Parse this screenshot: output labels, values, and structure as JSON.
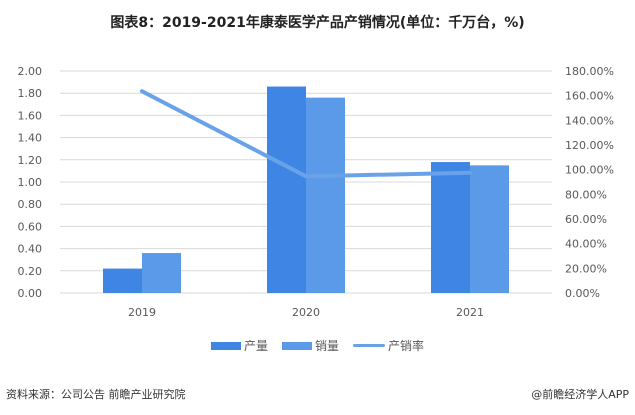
{
  "title": "图表8：2019-2021年康泰医学产品产销情况(单位：千万台，%)",
  "colors": {
    "production": "#3f86e4",
    "sales": "#5b9ae8",
    "rate": "#6aa2ea",
    "grid": "#d9d9d9"
  },
  "chart_data": {
    "type": "bar",
    "title": "图表8：2019-2021年康泰医学产品产销情况(单位：千万台，%)",
    "categories": [
      "2019",
      "2020",
      "2021"
    ],
    "series": [
      {
        "name": "产量",
        "type": "bar",
        "axis": "left",
        "values": [
          0.22,
          1.86,
          1.18
        ]
      },
      {
        "name": "销量",
        "type": "bar",
        "axis": "left",
        "values": [
          0.36,
          1.76,
          1.15
        ]
      },
      {
        "name": "产销率",
        "type": "line",
        "axis": "right",
        "values": [
          163.6,
          94.6,
          97.5
        ]
      }
    ],
    "y_left": {
      "range": [
        0,
        2.0
      ],
      "ticks": [
        "0.00",
        "0.20",
        "0.40",
        "0.60",
        "0.80",
        "1.00",
        "1.20",
        "1.40",
        "1.60",
        "1.80",
        "2.00"
      ]
    },
    "y_right": {
      "range": [
        0,
        180
      ],
      "ticks": [
        "0.00%",
        "20.00%",
        "40.00%",
        "60.00%",
        "80.00%",
        "100.00%",
        "120.00%",
        "140.00%",
        "160.00%",
        "180.00%"
      ]
    },
    "grid": true,
    "legend_position": "bottom"
  },
  "legend": [
    {
      "label": "产量",
      "kind": "bar"
    },
    {
      "label": "销量",
      "kind": "bar"
    },
    {
      "label": "产销率",
      "kind": "line"
    }
  ],
  "footer": {
    "source": "资料来源：公司公告 前瞻产业研究院",
    "credit": "@前瞻经济学人APP"
  }
}
